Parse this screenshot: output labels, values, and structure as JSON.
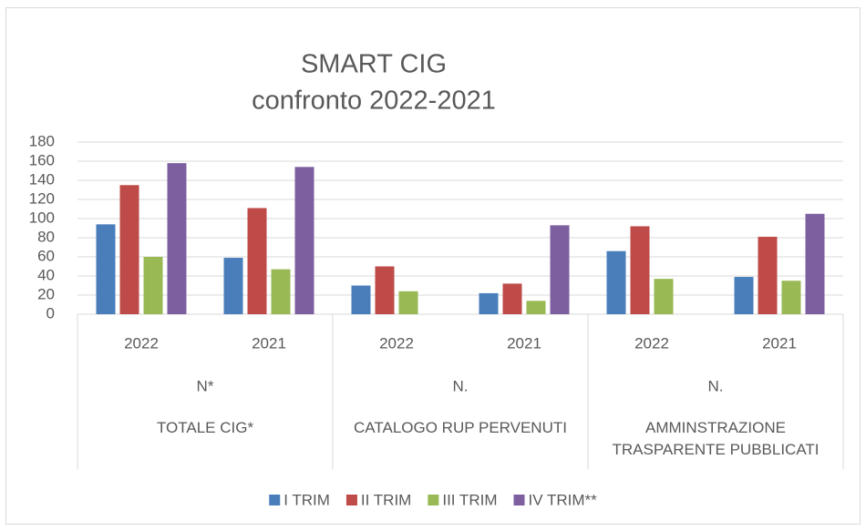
{
  "chart_data": {
    "type": "bar",
    "title": [
      "SMART CIG",
      "confronto 2022-2021"
    ],
    "categories": [
      "2022",
      "2021",
      "2022",
      "2021",
      "2022",
      "2021"
    ],
    "category_groups": [
      {
        "label": "N*",
        "sublabel": "TOTALE CIG*"
      },
      {
        "label": "N.",
        "sublabel": "CATALOGO RUP PERVENUTI"
      },
      {
        "label": "N.",
        "sublabel": "AMMINSTRAZIONE TRASPARENTE  PUBBLICATI"
      }
    ],
    "series": [
      {
        "name": "I TRIM",
        "color": "#4a7ebb",
        "values": [
          94,
          59,
          30,
          22,
          66,
          39
        ]
      },
      {
        "name": "II TRIM",
        "color": "#be4b48",
        "values": [
          135,
          111,
          50,
          32,
          92,
          81
        ]
      },
      {
        "name": "III TRIM",
        "color": "#98b954",
        "values": [
          60,
          47,
          24,
          14,
          37,
          35
        ]
      },
      {
        "name": "IV TRIM**",
        "color": "#7d5fa0",
        "values": [
          158,
          154,
          null,
          93,
          null,
          105
        ]
      }
    ],
    "ylim": [
      0,
      180
    ],
    "yticks": [
      0,
      20,
      40,
      60,
      80,
      100,
      120,
      140,
      160,
      180
    ],
    "grid": true,
    "legend": "bottom"
  }
}
